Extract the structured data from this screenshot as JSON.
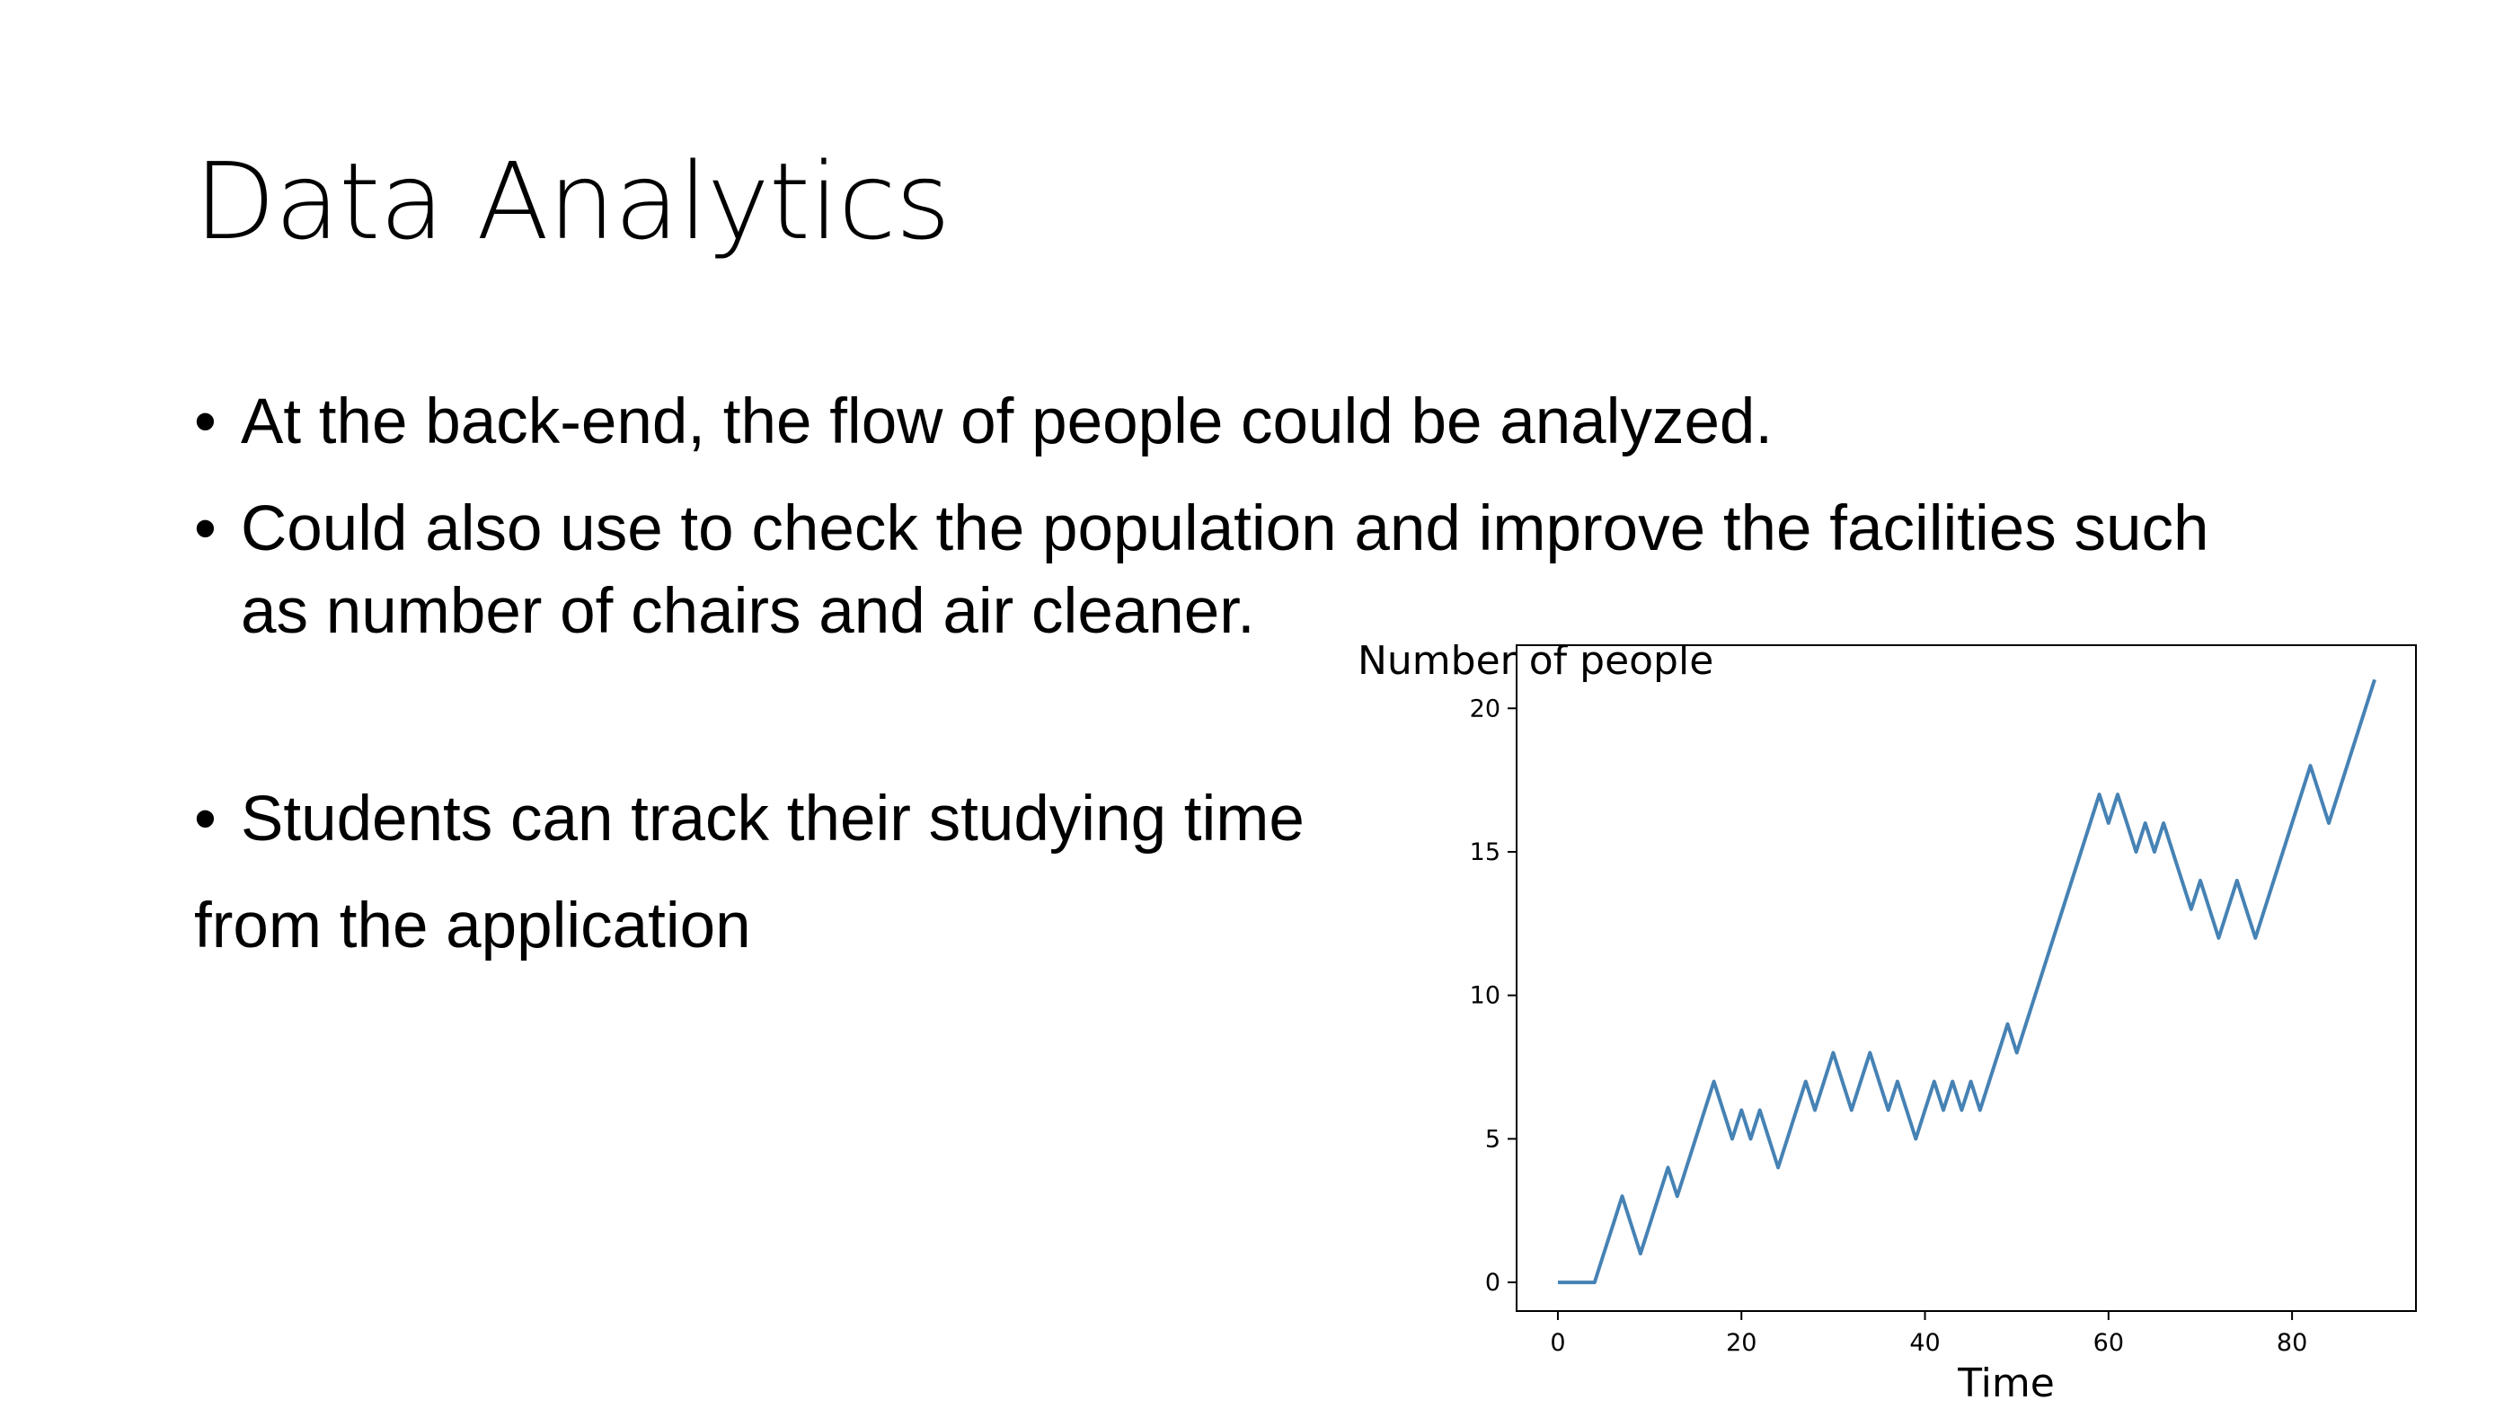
{
  "slide": {
    "title": "Data Analytics",
    "bullets": [
      {
        "marker": "•",
        "lines": [
          "At the back-end, the flow of people could be analyzed."
        ]
      },
      {
        "marker": "•",
        "lines": [
          "Could also use to check the population and improve the facilities such",
          "as number of chairs and air cleaner."
        ]
      },
      {
        "marker": "•",
        "lines": [
          "Students can track their studying time"
        ]
      }
    ],
    "trailing_line": "from the application"
  },
  "chart_data": {
    "type": "line",
    "title": "",
    "xlabel": "Time",
    "ylabel": "Number of people",
    "xlim": [
      -4.5,
      93.5
    ],
    "ylim": [
      -1,
      22.2
    ],
    "xticks": [
      0,
      20,
      40,
      60,
      80
    ],
    "yticks": [
      0,
      5,
      10,
      15,
      20
    ],
    "grid": false,
    "series": [
      {
        "color": "#4682b4",
        "x": [
          0,
          1,
          2,
          3,
          4,
          5,
          6,
          7,
          8,
          9,
          10,
          11,
          12,
          13,
          14,
          15,
          16,
          17,
          18,
          19,
          20,
          21,
          22,
          23,
          24,
          25,
          26,
          27,
          28,
          29,
          30,
          31,
          32,
          33,
          34,
          35,
          36,
          37,
          38,
          39,
          40,
          41,
          42,
          43,
          44,
          45,
          46,
          47,
          48,
          49,
          50,
          51,
          52,
          53,
          54,
          55,
          56,
          57,
          58,
          59,
          60,
          61,
          62,
          63,
          64,
          65,
          66,
          67,
          68,
          69,
          70,
          71,
          72,
          73,
          74,
          75,
          76,
          77,
          78,
          79,
          80,
          81,
          82,
          83,
          84,
          85,
          86,
          87,
          88,
          89
        ],
        "y": [
          0,
          0,
          0,
          0,
          0,
          1,
          2,
          3,
          2,
          1,
          2,
          3,
          4,
          3,
          4,
          5,
          6,
          7,
          6,
          5,
          6,
          5,
          6,
          5,
          4,
          5,
          6,
          7,
          6,
          7,
          8,
          7,
          6,
          7,
          8,
          7,
          6,
          7,
          6,
          5,
          6,
          7,
          6,
          7,
          6,
          7,
          6,
          7,
          8,
          9,
          8,
          9,
          10,
          11,
          12,
          13,
          14,
          15,
          16,
          17,
          16,
          17,
          16,
          15,
          16,
          15,
          16,
          15,
          14,
          13,
          14,
          13,
          12,
          13,
          14,
          13,
          12,
          13,
          14,
          15,
          16,
          17,
          18,
          17,
          16,
          17,
          18,
          19,
          20,
          21
        ]
      }
    ]
  }
}
